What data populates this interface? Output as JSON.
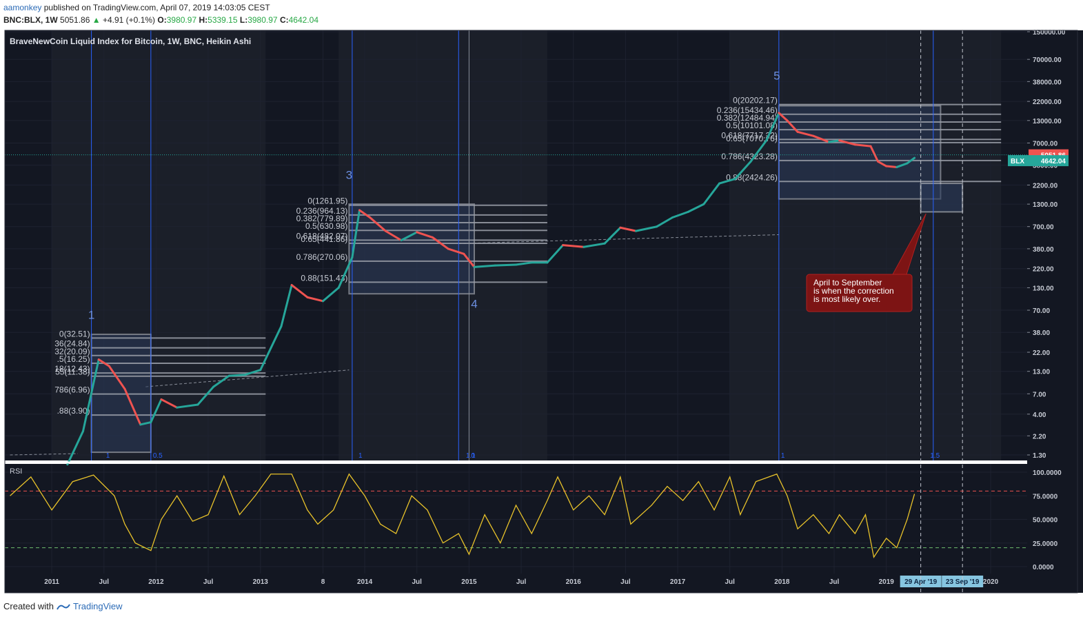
{
  "header": {
    "user": "aamonkey",
    "published": "published on TradingView.com, April 07, 2019 14:03:05 CEST",
    "symbol": "BNC:BLX, 1W",
    "last": "5051.86",
    "change": "+4.91 (+0.1%)",
    "o_label": "O:",
    "o": "3980.97",
    "h_label": "H:",
    "h": "5339.15",
    "l_label": "L:",
    "l": "3980.97",
    "c_label": "C:",
    "c": "4642.04"
  },
  "footer": {
    "created_with": "Created with",
    "brand": "TradingView"
  },
  "colors": {
    "bg": "#131722",
    "grid": "#1e2230",
    "up": "#26a69a",
    "down": "#ef5350",
    "rsi": "#e8c22a",
    "vline": "#2962ff",
    "fib": "#9ba0aa",
    "box_fill": "#2a3a5a",
    "note_bg": "#7d1414"
  },
  "chart_data": [
    {
      "type": "line",
      "title": "BraveNewCoin Liquid Index for Bitcoin, 1W, BNC, Heikin Ashi",
      "scale": "log",
      "x_ticks": [
        "2011",
        "Jul",
        "2012",
        "Jul",
        "2013",
        "8",
        "2014",
        "Jul",
        "2015",
        "Jul",
        "2016",
        "Jul",
        "2017",
        "Jul",
        "2018",
        "Jul",
        "2019",
        "29 Apr '19",
        "23 Sep '19",
        "2020"
      ],
      "y_ticks": [
        "150000.00",
        "70000.00",
        "38000.00",
        "22000.00",
        "13000.00",
        "7000.00",
        "3800.00",
        "2200.00",
        "1300.00",
        "700.00",
        "380.00",
        "220.00",
        "130.00",
        "70.00",
        "38.00",
        "22.00",
        "13.00",
        "7.00",
        "4.00",
        "2.20",
        "1.30"
      ],
      "y_range": [
        1.3,
        150000
      ],
      "price_labels": [
        {
          "symbol": "",
          "value": "5051.86",
          "color": "#ef5350"
        },
        {
          "symbol": "BLX",
          "value": "4642.04",
          "color": "#26a69a"
        }
      ],
      "series": [
        {
          "values": [
            {
              "t": 2011.15,
              "v": 1.0
            },
            {
              "t": 2011.3,
              "v": 2.5
            },
            {
              "t": 2011.45,
              "v": 18.0
            },
            {
              "t": 2011.55,
              "v": 15.0
            },
            {
              "t": 2011.7,
              "v": 8.0
            },
            {
              "t": 2011.85,
              "v": 3.0
            },
            {
              "t": 2011.95,
              "v": 3.2
            },
            {
              "t": 2012.05,
              "v": 6.0
            },
            {
              "t": 2012.2,
              "v": 4.8
            },
            {
              "t": 2012.4,
              "v": 5.2
            },
            {
              "t": 2012.55,
              "v": 8.5
            },
            {
              "t": 2012.7,
              "v": 11.5
            },
            {
              "t": 2012.85,
              "v": 11.8
            },
            {
              "t": 2013.0,
              "v": 13.5
            },
            {
              "t": 2013.2,
              "v": 45
            },
            {
              "t": 2013.3,
              "v": 140
            },
            {
              "t": 2013.45,
              "v": 100
            },
            {
              "t": 2013.6,
              "v": 90
            },
            {
              "t": 2013.75,
              "v": 130
            },
            {
              "t": 2013.88,
              "v": 300
            },
            {
              "t": 2013.95,
              "v": 1100
            },
            {
              "t": 2014.05,
              "v": 900
            },
            {
              "t": 2014.2,
              "v": 620
            },
            {
              "t": 2014.35,
              "v": 480
            },
            {
              "t": 2014.5,
              "v": 600
            },
            {
              "t": 2014.65,
              "v": 520
            },
            {
              "t": 2014.8,
              "v": 380
            },
            {
              "t": 2014.95,
              "v": 330
            },
            {
              "t": 2015.05,
              "v": 230
            },
            {
              "t": 2015.25,
              "v": 240
            },
            {
              "t": 2015.45,
              "v": 245
            },
            {
              "t": 2015.6,
              "v": 260
            },
            {
              "t": 2015.75,
              "v": 260
            },
            {
              "t": 2015.9,
              "v": 420
            },
            {
              "t": 2016.1,
              "v": 400
            },
            {
              "t": 2016.3,
              "v": 440
            },
            {
              "t": 2016.45,
              "v": 680
            },
            {
              "t": 2016.6,
              "v": 620
            },
            {
              "t": 2016.8,
              "v": 700
            },
            {
              "t": 2016.95,
              "v": 900
            },
            {
              "t": 2017.1,
              "v": 1050
            },
            {
              "t": 2017.25,
              "v": 1300
            },
            {
              "t": 2017.4,
              "v": 2300
            },
            {
              "t": 2017.55,
              "v": 2600
            },
            {
              "t": 2017.7,
              "v": 4200
            },
            {
              "t": 2017.85,
              "v": 7500
            },
            {
              "t": 2017.97,
              "v": 16000
            },
            {
              "t": 2018.05,
              "v": 13000
            },
            {
              "t": 2018.15,
              "v": 9500
            },
            {
              "t": 2018.3,
              "v": 8500
            },
            {
              "t": 2018.45,
              "v": 7200
            },
            {
              "t": 2018.55,
              "v": 7500
            },
            {
              "t": 2018.7,
              "v": 6700
            },
            {
              "t": 2018.85,
              "v": 6400
            },
            {
              "t": 2018.92,
              "v": 4200
            },
            {
              "t": 2019.0,
              "v": 3700
            },
            {
              "t": 2019.1,
              "v": 3600
            },
            {
              "t": 2019.2,
              "v": 4000
            },
            {
              "t": 2019.27,
              "v": 4642
            }
          ]
        }
      ],
      "waves": [
        {
          "label": "1",
          "t": 2011.38,
          "v": 55
        },
        {
          "label": "3",
          "t": 2013.85,
          "v": 2600
        },
        {
          "label": "4",
          "t": 2015.05,
          "v": 75
        },
        {
          "label": "5",
          "t": 2017.95,
          "v": 40000
        }
      ],
      "fib_sets": [
        {
          "t0": 2011.0,
          "t1": 2013.05,
          "levels": [
            {
              "label": "0(32.51)",
              "v": 32.51
            },
            {
              "label": "36(24.84)",
              "v": 24.84
            },
            {
              "label": "32(20.09)",
              "v": 20.09
            },
            {
              "label": ".5(16.25)",
              "v": 16.25
            },
            {
              "label": "18(12.43)",
              "v": 12.43
            },
            {
              "label": "55(11.38)",
              "v": 11.38
            },
            {
              "label": "786(6.96)",
              "v": 6.96
            },
            {
              "label": ".88(3.90)",
              "v": 3.9
            }
          ]
        },
        {
          "t0": 2013.75,
          "t1": 2015.75,
          "levels": [
            {
              "label": "0(1261.95)",
              "v": 1261.95
            },
            {
              "label": "0.236(964.13)",
              "v": 964.13
            },
            {
              "label": "0.382(779.89)",
              "v": 779.89
            },
            {
              "label": "0.5(630.98)",
              "v": 630.98
            },
            {
              "label": "0.618(482.07)",
              "v": 482.07
            },
            {
              "label": "0.65(441.86)",
              "v": 441.86
            },
            {
              "label": "0.786(270.06)",
              "v": 270.06
            },
            {
              "label": "0.88(151.43)",
              "v": 151.43
            }
          ]
        },
        {
          "t0": 2017.6,
          "t1": 2020.1,
          "levels": [
            {
              "label": "0(20202.17)",
              "v": 20202.17
            },
            {
              "label": "0.236(15434.46)",
              "v": 15434.46
            },
            {
              "label": "0.382(12484.94)",
              "v": 12484.94
            },
            {
              "label": "0.5(10101.08)",
              "v": 10101.08
            },
            {
              "label": "0.618(7717.22)",
              "v": 7717.22
            },
            {
              "label": "0.65(7070.76)",
              "v": 7070.76
            },
            {
              "label": "0.786(4323.28)",
              "v": 4323.28
            },
            {
              "label": "0.88(2424.26)",
              "v": 2424.26
            }
          ]
        }
      ],
      "vertical_labels": [
        {
          "label": "1",
          "t": 2011.5
        },
        {
          "label": "0.5",
          "t": 2011.95
        },
        {
          "label": "1",
          "t": 2013.92
        },
        {
          "label": "1.1",
          "t": 2014.95
        },
        {
          "label": "0",
          "t": 2015.0
        },
        {
          "label": "1",
          "t": 2017.97
        },
        {
          "label": "1.5",
          "t": 2019.4
        }
      ],
      "annotation": {
        "lines": [
          "April to September",
          "is when the correction",
          "is most likely over."
        ]
      }
    },
    {
      "type": "line",
      "title": "RSI",
      "y_ticks": [
        "100.0000",
        "75.0000",
        "50.0000",
        "25.0000",
        "0.0000"
      ],
      "y_range": [
        0,
        100
      ],
      "levels": [
        80,
        20
      ],
      "series": [
        {
          "values": [
            {
              "t": 2010.6,
              "v": 75
            },
            {
              "t": 2010.8,
              "v": 95
            },
            {
              "t": 2011.0,
              "v": 60
            },
            {
              "t": 2011.2,
              "v": 90
            },
            {
              "t": 2011.4,
              "v": 97
            },
            {
              "t": 2011.6,
              "v": 75
            },
            {
              "t": 2011.7,
              "v": 45
            },
            {
              "t": 2011.8,
              "v": 25
            },
            {
              "t": 2011.95,
              "v": 17
            },
            {
              "t": 2012.05,
              "v": 50
            },
            {
              "t": 2012.2,
              "v": 75
            },
            {
              "t": 2012.35,
              "v": 48
            },
            {
              "t": 2012.5,
              "v": 55
            },
            {
              "t": 2012.65,
              "v": 96
            },
            {
              "t": 2012.8,
              "v": 55
            },
            {
              "t": 2012.95,
              "v": 75
            },
            {
              "t": 2013.1,
              "v": 98
            },
            {
              "t": 2013.3,
              "v": 98
            },
            {
              "t": 2013.45,
              "v": 60
            },
            {
              "t": 2013.55,
              "v": 45
            },
            {
              "t": 2013.7,
              "v": 60
            },
            {
              "t": 2013.85,
              "v": 98
            },
            {
              "t": 2014.0,
              "v": 75
            },
            {
              "t": 2014.15,
              "v": 45
            },
            {
              "t": 2014.3,
              "v": 35
            },
            {
              "t": 2014.45,
              "v": 75
            },
            {
              "t": 2014.6,
              "v": 60
            },
            {
              "t": 2014.75,
              "v": 25
            },
            {
              "t": 2014.9,
              "v": 35
            },
            {
              "t": 2015.0,
              "v": 13
            },
            {
              "t": 2015.15,
              "v": 55
            },
            {
              "t": 2015.3,
              "v": 25
            },
            {
              "t": 2015.45,
              "v": 65
            },
            {
              "t": 2015.6,
              "v": 35
            },
            {
              "t": 2015.75,
              "v": 70
            },
            {
              "t": 2015.85,
              "v": 95
            },
            {
              "t": 2016.0,
              "v": 60
            },
            {
              "t": 2016.15,
              "v": 75
            },
            {
              "t": 2016.3,
              "v": 55
            },
            {
              "t": 2016.45,
              "v": 95
            },
            {
              "t": 2016.55,
              "v": 45
            },
            {
              "t": 2016.75,
              "v": 65
            },
            {
              "t": 2016.9,
              "v": 85
            },
            {
              "t": 2017.05,
              "v": 70
            },
            {
              "t": 2017.2,
              "v": 90
            },
            {
              "t": 2017.35,
              "v": 60
            },
            {
              "t": 2017.5,
              "v": 95
            },
            {
              "t": 2017.6,
              "v": 55
            },
            {
              "t": 2017.75,
              "v": 90
            },
            {
              "t": 2017.95,
              "v": 98
            },
            {
              "t": 2018.05,
              "v": 75
            },
            {
              "t": 2018.15,
              "v": 40
            },
            {
              "t": 2018.3,
              "v": 55
            },
            {
              "t": 2018.45,
              "v": 35
            },
            {
              "t": 2018.55,
              "v": 55
            },
            {
              "t": 2018.7,
              "v": 35
            },
            {
              "t": 2018.8,
              "v": 55
            },
            {
              "t": 2018.88,
              "v": 10
            },
            {
              "t": 2019.0,
              "v": 30
            },
            {
              "t": 2019.1,
              "v": 20
            },
            {
              "t": 2019.2,
              "v": 50
            },
            {
              "t": 2019.27,
              "v": 77
            }
          ]
        }
      ]
    }
  ]
}
